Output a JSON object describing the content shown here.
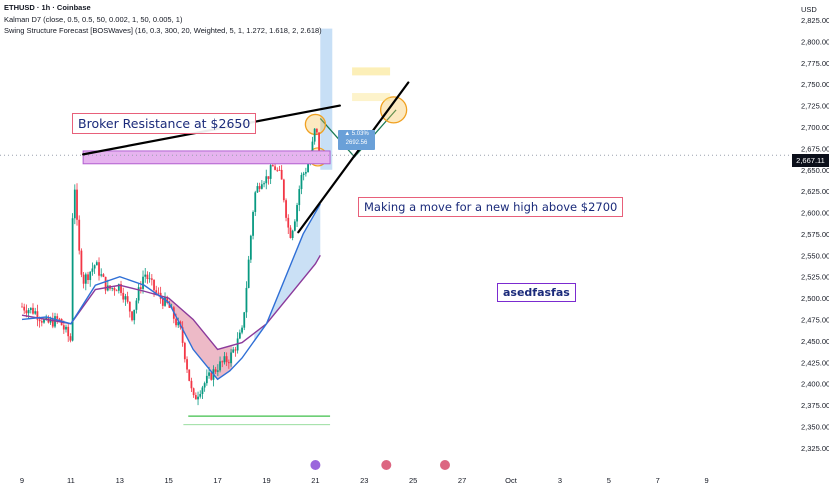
{
  "header": {
    "symbol_line": "ETHUSD · 1h · Coinbase",
    "indicator1": "Kalman D7 (close, 0.5, 0.5, 50, 0.002, 1, 50, 0.005, 1)",
    "indicator2": "Swing Structure Forecast [BOSWaves] (16, 0.3, 300, 20, Weighted, 5, 1, 1.272, 1.618, 2, 2.618)",
    "currency": "USD"
  },
  "annotations": {
    "broker": "Broker Resistance at $2650",
    "move": "Making a move for a new high above $2700",
    "watermark": "asedfasfas"
  },
  "price_tag": "2,667.11",
  "stats_box": {
    "line1": "▲ 5.03%",
    "line2": "2692.56"
  },
  "colors": {
    "up": "#089981",
    "down": "#f23645",
    "kalman_fast": "#2f6fd6",
    "kalman_slow": "#8b3a9b",
    "resistance_zone": "#e6b3ef",
    "annotation_border": "#e8607a"
  },
  "chart_data": {
    "type": "line",
    "title": "ETHUSD · 1h · Coinbase",
    "ylabel": "USD",
    "ylim": [
      2320,
      2850
    ],
    "y_ticks": [
      "2,825.00",
      "2,800.00",
      "2,775.00",
      "2,750.00",
      "2,725.00",
      "2,700.00",
      "2,675.00",
      "2,650.00",
      "2,625.00",
      "2,600.00",
      "2,575.00",
      "2,550.00",
      "2,525.00",
      "2,500.00",
      "2,475.00",
      "2,450.00",
      "2,425.00",
      "2,400.00",
      "2,375.00",
      "2,350.00",
      "2,325.00"
    ],
    "x_ticks": [
      "9",
      "11",
      "13",
      "15",
      "17",
      "19",
      "21",
      "23",
      "25",
      "27",
      "Oct",
      "3",
      "5",
      "7",
      "9"
    ],
    "series": [
      {
        "name": "ETHUSD",
        "x": [
          9.0,
          9.5,
          10.0,
          10.5,
          11.0,
          11.1,
          11.3,
          11.5,
          12.0,
          12.5,
          13.0,
          13.5,
          14.0,
          14.5,
          15.0,
          15.5,
          16.0,
          16.3,
          16.6,
          17.0,
          17.5,
          18.0,
          18.2,
          18.5,
          18.8,
          19.0,
          19.3,
          19.6,
          19.9,
          20.0,
          20.2,
          20.4,
          20.6,
          20.8,
          21.0,
          21.2
        ],
        "y": [
          2490,
          2485,
          2470,
          2475,
          2450,
          2660,
          2560,
          2520,
          2540,
          2510,
          2515,
          2480,
          2530,
          2505,
          2490,
          2460,
          2380,
          2395,
          2405,
          2420,
          2430,
          2460,
          2520,
          2620,
          2640,
          2640,
          2655,
          2640,
          2580,
          2575,
          2600,
          2640,
          2650,
          2665,
          2700,
          2667
        ]
      },
      {
        "name": "Kalman fast",
        "x": [
          9,
          10,
          11,
          12,
          13,
          14,
          15,
          16,
          17,
          17.5,
          18,
          19,
          20,
          20.5,
          21,
          21.2
        ],
        "y": [
          2475,
          2478,
          2470,
          2515,
          2525,
          2515,
          2495,
          2440,
          2405,
          2415,
          2430,
          2470,
          2540,
          2575,
          2600,
          2610
        ]
      },
      {
        "name": "Kalman slow",
        "x": [
          9,
          10,
          11,
          12,
          13,
          14,
          15,
          16,
          17,
          18,
          19,
          20,
          21,
          21.2
        ],
        "y": [
          2480,
          2475,
          2470,
          2510,
          2515,
          2508,
          2500,
          2475,
          2440,
          2448,
          2470,
          2505,
          2540,
          2550
        ]
      }
    ],
    "lines": [
      {
        "from": [
          11.5,
          2668
        ],
        "to": [
          22.0,
          2725
        ]
      },
      {
        "from": [
          20.3,
          2577
        ],
        "to": [
          24.8,
          2752
        ]
      }
    ],
    "zones": [
      {
        "x": [
          11.5,
          21.6
        ],
        "y": [
          2657,
          2672
        ]
      }
    ],
    "grid": false
  }
}
